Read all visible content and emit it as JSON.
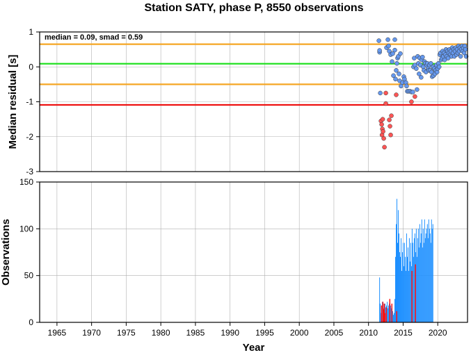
{
  "chart_data": [
    {
      "type": "scatter",
      "title": "Station SATY, phase P, 8550 observations",
      "xlabel": "",
      "ylabel": "Median residual [s]",
      "xlim": [
        1962.5,
        2024.3
      ],
      "ylim": [
        -3,
        1
      ],
      "y_ticks": [
        "1",
        "0",
        "-1",
        "-2",
        "-3"
      ],
      "y_tick_values": [
        1,
        0,
        -1,
        -2,
        -3
      ],
      "grid": true,
      "annotation": "median = 0.09, smad = 0.59",
      "reference_lines": [
        {
          "y": 0.65,
          "color": "#f5a623"
        },
        {
          "y": 0.09,
          "color": "#22e022"
        },
        {
          "y": -0.5,
          "color": "#f5a623"
        },
        {
          "y": -1.09,
          "color": "#ee1111"
        }
      ],
      "colors": {
        "in_range": "#6699ee",
        "outlier": "#ff5555"
      },
      "series": [
        {
          "color": "in_range",
          "points": [
            [
              2011.5,
              0.75
            ],
            [
              2011.6,
              0.42
            ],
            [
              2011.6,
              0.47
            ],
            [
              2011.7,
              -0.75
            ],
            [
              2012.6,
              0.55
            ],
            [
              2012.8,
              0.78
            ],
            [
              2012.9,
              0.6
            ],
            [
              2013.0,
              0.45
            ],
            [
              2013.2,
              0.35
            ],
            [
              2013.4,
              0.15
            ],
            [
              2013.5,
              0.38
            ],
            [
              2013.6,
              -0.25
            ],
            [
              2013.8,
              0.78
            ],
            [
              2013.8,
              0.48
            ],
            [
              2013.9,
              -0.35
            ],
            [
              2014.0,
              -0.1
            ],
            [
              2014.1,
              0.1
            ],
            [
              2014.2,
              0.25
            ],
            [
              2014.3,
              0.3
            ],
            [
              2014.4,
              -0.2
            ],
            [
              2014.5,
              -0.4
            ],
            [
              2014.6,
              0.38
            ],
            [
              2014.7,
              -0.55
            ],
            [
              2014.9,
              -0.45
            ],
            [
              2015.1,
              -0.28
            ],
            [
              2015.2,
              -0.35
            ],
            [
              2015.4,
              -0.45
            ],
            [
              2015.5,
              -0.55
            ],
            [
              2015.6,
              -0.7
            ],
            [
              2015.8,
              -0.7
            ],
            [
              2016.0,
              -0.7
            ],
            [
              2016.2,
              -0.72
            ],
            [
              2016.4,
              -0.72
            ],
            [
              2016.5,
              0.0
            ],
            [
              2016.6,
              0.25
            ],
            [
              2016.7,
              0.05
            ],
            [
              2016.9,
              -0.05
            ],
            [
              2017.0,
              -0.65
            ],
            [
              2017.1,
              0.3
            ],
            [
              2017.2,
              0.1
            ],
            [
              2017.3,
              -0.2
            ],
            [
              2017.4,
              0.25
            ],
            [
              2017.5,
              0.05
            ],
            [
              2017.6,
              -0.3
            ],
            [
              2017.7,
              0.2
            ],
            [
              2017.8,
              0.28
            ],
            [
              2017.9,
              0.0
            ],
            [
              2018.0,
              -0.1
            ],
            [
              2018.1,
              0.15
            ],
            [
              2018.2,
              0.1
            ],
            [
              2018.3,
              -0.15
            ],
            [
              2018.4,
              0.05
            ],
            [
              2018.5,
              0.1
            ],
            [
              2018.6,
              -0.05
            ],
            [
              2018.7,
              -0.1
            ],
            [
              2018.8,
              0.05
            ],
            [
              2018.9,
              -0.1
            ],
            [
              2019.0,
              0.1
            ],
            [
              2019.1,
              -0.15
            ],
            [
              2019.2,
              -0.28
            ],
            [
              2019.3,
              0.0
            ],
            [
              2019.4,
              -0.25
            ],
            [
              2019.5,
              -0.05
            ],
            [
              2019.6,
              -0.2
            ],
            [
              2019.7,
              -0.1
            ],
            [
              2019.8,
              0.05
            ],
            [
              2019.9,
              -0.15
            ],
            [
              2020.0,
              -0.05
            ],
            [
              2020.1,
              0.1
            ],
            [
              2020.2,
              0.0
            ],
            [
              2020.3,
              0.35
            ],
            [
              2020.4,
              0.4
            ],
            [
              2020.5,
              0.2
            ],
            [
              2020.6,
              0.25
            ],
            [
              2020.7,
              0.45
            ],
            [
              2020.8,
              0.3
            ],
            [
              2020.9,
              0.4
            ],
            [
              2021.0,
              0.2
            ],
            [
              2021.1,
              0.35
            ],
            [
              2021.2,
              0.5
            ],
            [
              2021.3,
              0.3
            ],
            [
              2021.4,
              0.45
            ],
            [
              2021.5,
              0.25
            ],
            [
              2021.6,
              0.4
            ],
            [
              2021.7,
              0.5
            ],
            [
              2021.8,
              0.35
            ],
            [
              2021.9,
              0.45
            ],
            [
              2022.0,
              0.3
            ],
            [
              2022.1,
              0.55
            ],
            [
              2022.2,
              0.4
            ],
            [
              2022.3,
              0.5
            ],
            [
              2022.4,
              0.3
            ],
            [
              2022.5,
              0.45
            ],
            [
              2022.6,
              0.55
            ],
            [
              2022.7,
              0.35
            ],
            [
              2022.8,
              0.5
            ],
            [
              2022.9,
              0.4
            ],
            [
              2023.0,
              0.6
            ],
            [
              2023.1,
              0.45
            ],
            [
              2023.2,
              0.55
            ],
            [
              2023.3,
              0.3
            ],
            [
              2023.4,
              0.5
            ],
            [
              2023.5,
              0.6
            ],
            [
              2023.6,
              0.45
            ],
            [
              2023.7,
              0.55
            ],
            [
              2023.8,
              0.4
            ],
            [
              2023.9,
              0.6
            ],
            [
              2024.0,
              0.5
            ],
            [
              2024.1,
              0.3
            ]
          ]
        },
        {
          "color": "outlier",
          "points": [
            [
              2011.8,
              -1.55
            ],
            [
              2011.9,
              -1.65
            ],
            [
              2011.95,
              -1.95
            ],
            [
              2012.0,
              -1.78
            ],
            [
              2012.05,
              -1.5
            ],
            [
              2012.1,
              -1.85
            ],
            [
              2012.2,
              -2.05
            ],
            [
              2012.3,
              -2.3
            ],
            [
              2012.5,
              -1.05
            ],
            [
              2012.5,
              -0.75
            ],
            [
              2013.0,
              -1.52
            ],
            [
              2013.1,
              -1.7
            ],
            [
              2013.2,
              -1.95
            ],
            [
              2013.3,
              -1.4
            ],
            [
              2014.0,
              -0.8
            ],
            [
              2016.2,
              -1.0
            ],
            [
              2016.7,
              -0.85
            ]
          ]
        }
      ]
    },
    {
      "type": "bar",
      "title": "",
      "xlabel": "Year",
      "ylabel": "Observations",
      "xlim": [
        1962.5,
        2024.3
      ],
      "ylim": [
        0,
        150
      ],
      "y_ticks": [
        "150",
        "100",
        "50",
        "0"
      ],
      "y_tick_values": [
        150,
        100,
        50,
        0
      ],
      "x_ticks": [
        "1965",
        "1970",
        "1975",
        "1980",
        "1985",
        "1990",
        "1995",
        "2000",
        "2005",
        "2010",
        "2015",
        "2020"
      ],
      "x_tick_values": [
        1965,
        1970,
        1975,
        1980,
        1985,
        1990,
        1995,
        2000,
        2005,
        2010,
        2015,
        2020
      ],
      "grid": true,
      "colors": {
        "count": "#1e90ff",
        "outlier": "#ff1111"
      },
      "series": [
        {
          "color": "count",
          "x_start": 2011.55,
          "x_step": 0.1,
          "values": [
            48,
            20,
            10,
            18,
            22,
            12,
            15,
            18,
            20,
            16,
            18,
            22,
            15,
            18,
            20,
            15,
            18,
            15,
            15,
            12,
            8,
            10,
            25,
            70,
            105,
            132,
            85,
            120,
            95,
            75,
            70,
            90,
            55,
            75,
            85,
            60,
            85,
            70,
            55,
            95,
            70,
            80,
            55,
            90,
            65,
            85,
            60,
            100,
            85,
            70,
            90,
            95,
            75,
            100,
            70,
            90,
            100,
            80,
            105,
            85,
            95,
            110,
            80,
            100,
            85,
            110,
            90,
            95,
            100,
            105,
            90,
            110,
            100,
            95,
            85,
            110,
            100,
            105
          ]
        },
        {
          "color": "outlier",
          "points": [
            [
              2011.8,
              18
            ],
            [
              2012.0,
              22
            ],
            [
              2012.1,
              14
            ],
            [
              2012.2,
              20
            ],
            [
              2012.3,
              10
            ],
            [
              2012.5,
              16
            ],
            [
              2013.0,
              25
            ],
            [
              2013.3,
              20
            ],
            [
              2014.0,
              12
            ],
            [
              2016.2,
              55
            ],
            [
              2016.7,
              62
            ]
          ]
        }
      ]
    }
  ]
}
